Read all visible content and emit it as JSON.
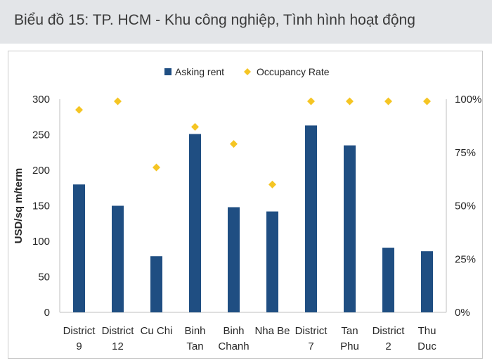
{
  "header": {
    "title": "Biểu đồ 15: TP. HCM - Khu công nghiệp, Tình hình hoạt động"
  },
  "chart_data": {
    "type": "bar",
    "categories": [
      [
        "District",
        "9"
      ],
      [
        "District",
        "12"
      ],
      [
        "Cu Chi"
      ],
      [
        "Binh",
        "Tan"
      ],
      [
        "Binh",
        "Chanh"
      ],
      [
        "Nha Be"
      ],
      [
        "District",
        "7"
      ],
      [
        "Tan",
        "Phu"
      ],
      [
        "District",
        "2"
      ],
      [
        "Thu",
        "Duc"
      ]
    ],
    "series": [
      {
        "name": "Asking rent",
        "type": "bar",
        "axis": "left",
        "color": "#1f4e82",
        "values": [
          180,
          150,
          79,
          251,
          148,
          142,
          263,
          235,
          91,
          86
        ]
      },
      {
        "name": "Occupancy Rate",
        "type": "scatter",
        "axis": "right",
        "color": "#f5c523",
        "values": [
          95,
          99,
          68,
          87,
          79,
          60,
          99,
          99,
          99,
          99
        ]
      }
    ],
    "ylabel": "USD/sq m/term",
    "ylim": [
      0,
      300
    ],
    "yticks": [
      "0",
      "50",
      "100",
      "150",
      "200",
      "250",
      "300"
    ],
    "y2lim": [
      0,
      100
    ],
    "y2ticks": [
      "0%",
      "25%",
      "50%",
      "75%",
      "100%"
    ],
    "grid": false,
    "legend": "top-center"
  }
}
